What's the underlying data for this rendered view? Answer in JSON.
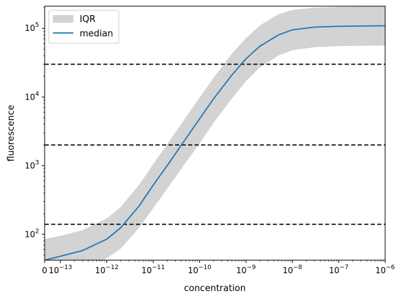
{
  "chart_data": {
    "type": "line",
    "xlabel": "concentration",
    "ylabel": "fluorescence",
    "xscale": "symlog",
    "yscale": "log",
    "xlim": [
      0,
      1e-06
    ],
    "ylim": [
      42,
      210000
    ],
    "x_ticks": [
      {
        "value": 0,
        "label": "0"
      },
      {
        "value": 1e-13,
        "base": "10",
        "exp": "−13"
      },
      {
        "value": 1e-12,
        "base": "10",
        "exp": "−12"
      },
      {
        "value": 1e-11,
        "base": "10",
        "exp": "−11"
      },
      {
        "value": 1e-10,
        "base": "10",
        "exp": "−10"
      },
      {
        "value": 1e-09,
        "base": "10",
        "exp": "−9"
      },
      {
        "value": 1e-08,
        "base": "10",
        "exp": "−8"
      },
      {
        "value": 1e-07,
        "base": "10",
        "exp": "−7"
      },
      {
        "value": 1e-06,
        "base": "10",
        "exp": "−6"
      }
    ],
    "y_ticks": [
      {
        "value": 100,
        "base": "10",
        "exp": "2"
      },
      {
        "value": 1000,
        "base": "10",
        "exp": "3"
      },
      {
        "value": 10000,
        "base": "10",
        "exp": "4"
      },
      {
        "value": 100000,
        "base": "10",
        "exp": "5"
      }
    ],
    "series": [
      {
        "name": "median",
        "color": "#1f77b4",
        "x": [
          0,
          1e-13,
          3e-13,
          1e-12,
          2e-12,
          5e-12,
          1e-11,
          2e-11,
          5e-11,
          1e-10,
          2e-10,
          5e-10,
          1e-09,
          2e-09,
          5e-09,
          1e-08,
          3e-08,
          1e-07,
          3e-07,
          1e-06
        ],
        "y": [
          42,
          48,
          58,
          85,
          125,
          260,
          520,
          1000,
          2450,
          4800,
          9400,
          21000,
          36000,
          55000,
          80000,
          95000,
          104000,
          107000,
          108000,
          109000
        ]
      }
    ],
    "band": {
      "name": "IQR",
      "color": "#d3d3d3",
      "x": [
        0,
        1e-13,
        3e-13,
        1e-12,
        2e-12,
        5e-12,
        1e-11,
        2e-11,
        5e-11,
        1e-10,
        2e-10,
        5e-10,
        1e-09,
        2e-09,
        5e-09,
        1e-08,
        3e-08,
        1e-07,
        3e-07,
        1e-06
      ],
      "low": [
        18,
        24,
        30,
        45,
        62,
        125,
        240,
        460,
        1100,
        2100,
        4200,
        9500,
        17000,
        27000,
        40000,
        48000,
        53000,
        55000,
        55500,
        56000
      ],
      "high": [
        85,
        95,
        115,
        170,
        250,
        530,
        1050,
        2050,
        5000,
        9800,
        19000,
        43000,
        72000,
        110000,
        160000,
        185000,
        200000,
        205000,
        208000,
        210000
      ]
    },
    "hlines": [
      140,
      2000,
      30000
    ],
    "legend": {
      "position": "upper-left",
      "entries": [
        {
          "label": "IQR",
          "kind": "patch",
          "color": "#d3d3d3"
        },
        {
          "label": "median",
          "kind": "line",
          "color": "#1f77b4"
        }
      ]
    }
  }
}
